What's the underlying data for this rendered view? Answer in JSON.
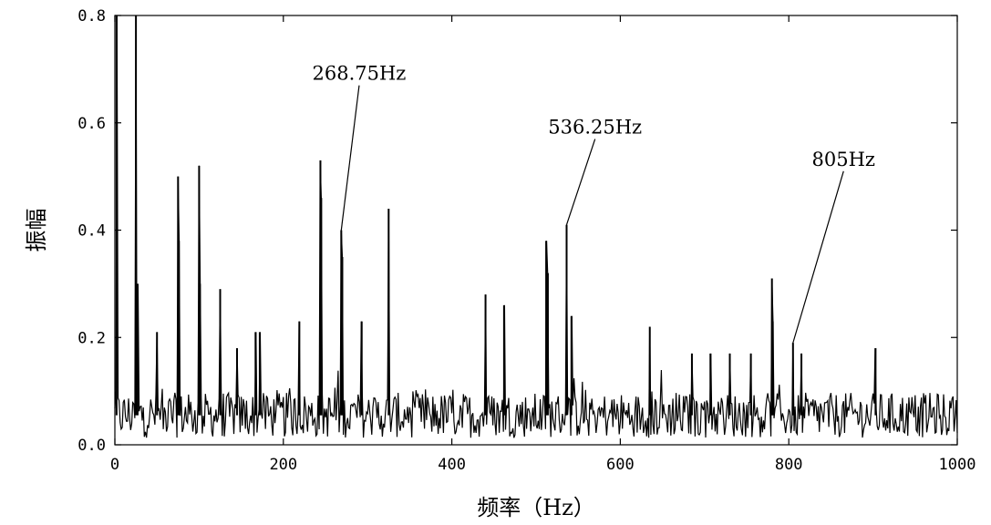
{
  "chart_data": {
    "type": "line",
    "title": "",
    "xlabel": "频率（Hz）",
    "ylabel": "振幅",
    "xlim": [
      0,
      1000
    ],
    "ylim": [
      0,
      0.8
    ],
    "x_ticks": [
      "0",
      "200",
      "400",
      "600",
      "800",
      "1000"
    ],
    "y_ticks": [
      "0.0",
      "0.2",
      "0.4",
      "0.6",
      "0.8"
    ],
    "grid": false,
    "line_color": "#000000",
    "peaks": [
      {
        "x": 2,
        "y": 0.8
      },
      {
        "x": 25,
        "y": 0.8
      },
      {
        "x": 27,
        "y": 0.3
      },
      {
        "x": 50,
        "y": 0.21
      },
      {
        "x": 75,
        "y": 0.5
      },
      {
        "x": 76,
        "y": 0.38
      },
      {
        "x": 100,
        "y": 0.52
      },
      {
        "x": 101,
        "y": 0.3
      },
      {
        "x": 125,
        "y": 0.29
      },
      {
        "x": 145,
        "y": 0.18
      },
      {
        "x": 167,
        "y": 0.21
      },
      {
        "x": 172,
        "y": 0.21
      },
      {
        "x": 219,
        "y": 0.23
      },
      {
        "x": 244,
        "y": 0.53
      },
      {
        "x": 245,
        "y": 0.46
      },
      {
        "x": 268.75,
        "y": 0.4
      },
      {
        "x": 270,
        "y": 0.35
      },
      {
        "x": 293,
        "y": 0.23
      },
      {
        "x": 325,
        "y": 0.44
      },
      {
        "x": 440,
        "y": 0.28
      },
      {
        "x": 462,
        "y": 0.26
      },
      {
        "x": 512,
        "y": 0.38
      },
      {
        "x": 514,
        "y": 0.32
      },
      {
        "x": 536.25,
        "y": 0.41
      },
      {
        "x": 542,
        "y": 0.24
      },
      {
        "x": 635,
        "y": 0.22
      },
      {
        "x": 685,
        "y": 0.17
      },
      {
        "x": 707,
        "y": 0.17
      },
      {
        "x": 730,
        "y": 0.17
      },
      {
        "x": 755,
        "y": 0.17
      },
      {
        "x": 780,
        "y": 0.31
      },
      {
        "x": 781,
        "y": 0.23
      },
      {
        "x": 805,
        "y": 0.19
      },
      {
        "x": 815,
        "y": 0.17
      },
      {
        "x": 903,
        "y": 0.18
      }
    ],
    "noise_floor": {
      "mean": 0.055,
      "spread": 0.06
    },
    "annotations": [
      {
        "text": "268.75Hz",
        "x": 268.75,
        "y": 0.4,
        "label_x": 290,
        "label_y": 0.68
      },
      {
        "text": "536.25Hz",
        "x": 536.25,
        "y": 0.41,
        "label_x": 570,
        "label_y": 0.58
      },
      {
        "text": "805Hz",
        "x": 805,
        "y": 0.19,
        "label_x": 865,
        "label_y": 0.52
      }
    ]
  }
}
